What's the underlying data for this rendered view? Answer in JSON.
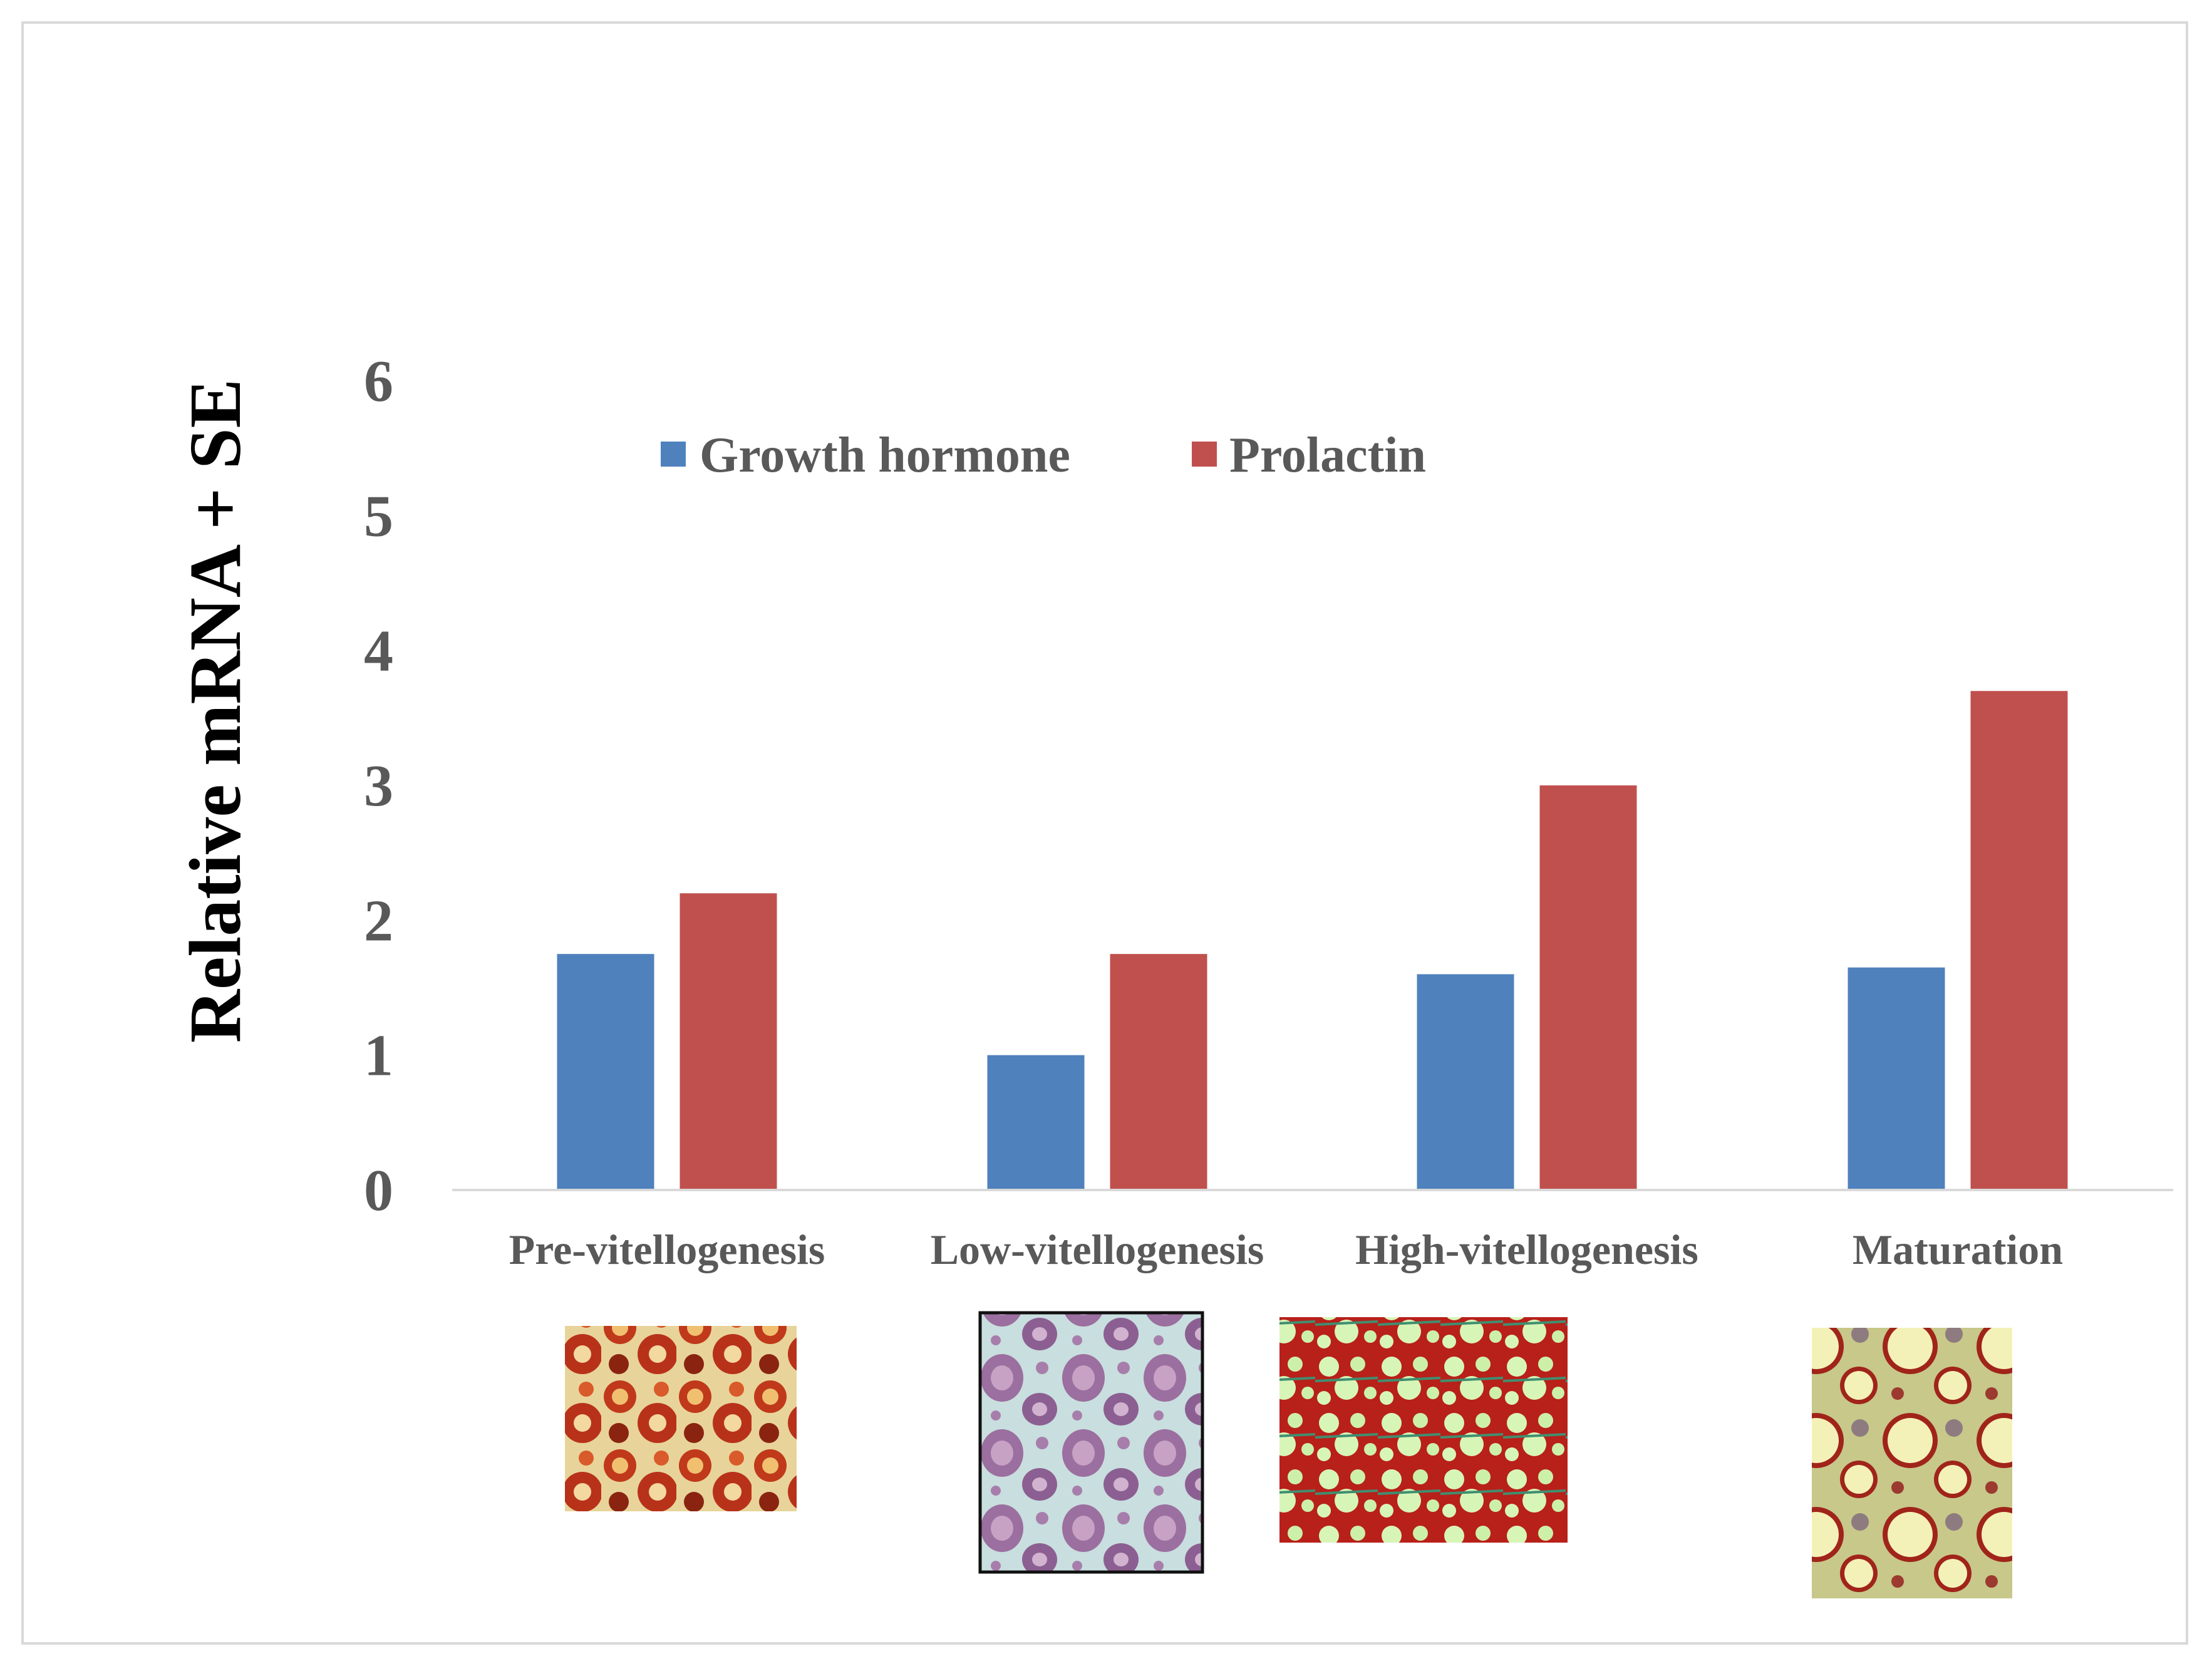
{
  "chart_data": {
    "type": "bar",
    "title": "",
    "xlabel": "",
    "ylabel": "Relative mRNA + SE",
    "ylim": [
      0,
      6
    ],
    "yticks": [
      "0",
      "1",
      "2",
      "3",
      "4",
      "5",
      "6"
    ],
    "grid": false,
    "legend_position": "top",
    "categories": [
      "Pre-vitellogenesis",
      "Low-vitellogenesis",
      "High-vitellogenesis",
      "Maturation"
    ],
    "series": [
      {
        "name": "Growth hormone",
        "color": "#4f81bd",
        "values": [
          1.75,
          1.0,
          1.6,
          1.65
        ]
      },
      {
        "name": "Prolactin",
        "color": "#c0504d",
        "values": [
          2.2,
          1.75,
          3.0,
          3.7
        ]
      }
    ],
    "micrographs": [
      {
        "category": "Pre-vitellogenesis",
        "palette": "red-orange",
        "bordered": false
      },
      {
        "category": "Low-vitellogenesis",
        "palette": "purple-pink",
        "bordered": true
      },
      {
        "category": "High-vitellogenesis",
        "palette": "green-red",
        "bordered": false
      },
      {
        "category": "Maturation",
        "palette": "yellow-red",
        "bordered": false
      }
    ]
  }
}
